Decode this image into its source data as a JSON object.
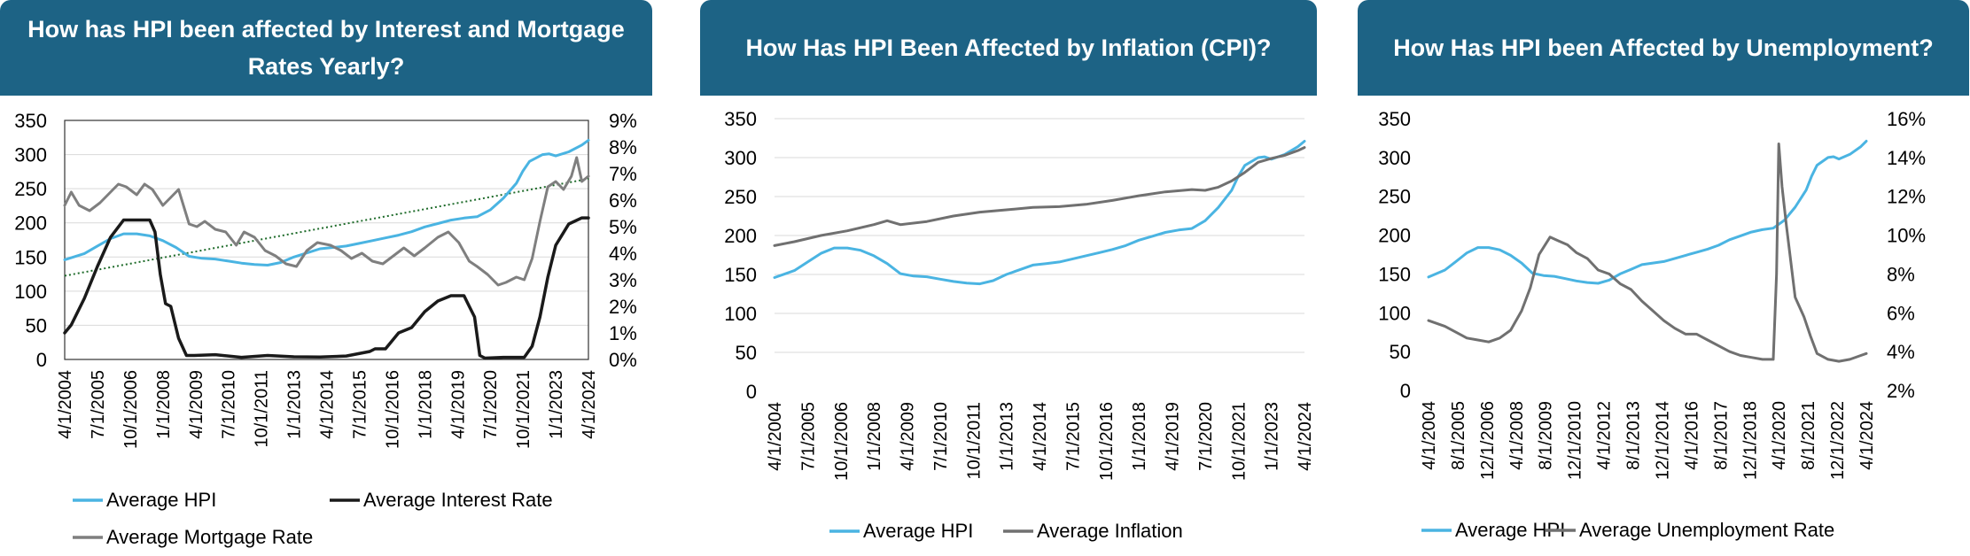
{
  "colors": {
    "banner": "#1d6385",
    "hpi": "#4ab4e2",
    "interest": "#1a1a1a",
    "mortgage": "#7f7f7f",
    "inflation": "#707070",
    "unemployment": "#707070",
    "trend": "#1e6b2a"
  },
  "chart_data": [
    {
      "type": "line",
      "title": "How has HPI been affected by Interest and Mortgage Rates Yearly?",
      "ylim": [
        0,
        350
      ],
      "y2lim": [
        0,
        9
      ],
      "yticks": [
        "0",
        "50",
        "100",
        "150",
        "200",
        "250",
        "300",
        "350"
      ],
      "y2ticks": [
        "0%",
        "1%",
        "2%",
        "3%",
        "4%",
        "5%",
        "6%",
        "7%",
        "8%",
        "9%"
      ],
      "xticks": [
        "4/1/2004",
        "7/1/2005",
        "10/1/2006",
        "1/1/2008",
        "4/1/2009",
        "7/1/2010",
        "10/1/2011",
        "1/1/2013",
        "4/1/2014",
        "7/1/2015",
        "10/1/2016",
        "1/1/2018",
        "4/1/2019",
        "7/1/2020",
        "10/1/2021",
        "1/1/2023",
        "4/1/2024"
      ],
      "xlim": [
        2004.25,
        2024.25
      ],
      "grid": true,
      "legend_position": "bottom",
      "trendline": {
        "series": "Average Mortgage Rate",
        "axis": "secondary",
        "x": [
          2004.25,
          2024.25
        ],
        "y": [
          3.15,
          6.8
        ]
      },
      "series": [
        {
          "name": "Average HPI",
          "axis": "primary",
          "x": [
            2004.25,
            2005,
            2005.5,
            2006,
            2006.5,
            2007,
            2007.5,
            2008,
            2008.5,
            2009,
            2009.5,
            2010,
            2010.5,
            2011,
            2011.5,
            2012,
            2012.5,
            2013,
            2013.5,
            2014,
            2014.5,
            2015,
            2015.5,
            2016,
            2016.5,
            2017,
            2017.5,
            2018,
            2018.5,
            2019,
            2019.5,
            2020,
            2020.25,
            2020.5,
            2021,
            2021.5,
            2021.75,
            2022,
            2022.5,
            2022.75,
            2023,
            2023.5,
            2024,
            2024.25
          ],
          "y": [
            146,
            155,
            166,
            177,
            184,
            184,
            181,
            174,
            164,
            151,
            148,
            147,
            144,
            141,
            139,
            138,
            142,
            150,
            156,
            162,
            164,
            166,
            170,
            174,
            178,
            182,
            187,
            194,
            199,
            204,
            207,
            209,
            214,
            219,
            236,
            258,
            276,
            290,
            300,
            301,
            298,
            304,
            314,
            321
          ]
        },
        {
          "name": "Average Interest Rate",
          "axis": "secondary",
          "x": [
            2004.25,
            2004.5,
            2005,
            2005.5,
            2006,
            2006.5,
            2007,
            2007.5,
            2007.7,
            2007.9,
            2008.1,
            2008.3,
            2008.6,
            2008.9,
            2009.2,
            2010,
            2011,
            2012,
            2013,
            2014,
            2015,
            2015.9,
            2016.1,
            2016.5,
            2017,
            2017.5,
            2018,
            2018.5,
            2019,
            2019.5,
            2019.7,
            2019.9,
            2020.1,
            2020.3,
            2021,
            2021.8,
            2022.1,
            2022.4,
            2022.7,
            2023,
            2023.5,
            2024,
            2024.25
          ],
          "y": [
            1.0,
            1.3,
            2.3,
            3.5,
            4.6,
            5.25,
            5.25,
            5.25,
            4.8,
            3.2,
            2.1,
            2.0,
            0.8,
            0.15,
            0.15,
            0.18,
            0.08,
            0.15,
            0.1,
            0.09,
            0.13,
            0.3,
            0.4,
            0.4,
            1.0,
            1.2,
            1.8,
            2.2,
            2.4,
            2.4,
            2.0,
            1.6,
            0.15,
            0.05,
            0.08,
            0.08,
            0.5,
            1.6,
            3.1,
            4.3,
            5.1,
            5.33,
            5.33
          ]
        },
        {
          "name": "Average Mortgage Rate",
          "axis": "secondary",
          "x": [
            2004.25,
            2004.5,
            2004.8,
            2005.2,
            2005.6,
            2006,
            2006.3,
            2006.6,
            2007,
            2007.3,
            2007.6,
            2008,
            2008.3,
            2008.6,
            2009,
            2009.3,
            2009.6,
            2010,
            2010.4,
            2010.8,
            2011.1,
            2011.5,
            2011.9,
            2012.3,
            2012.7,
            2013.1,
            2013.5,
            2013.9,
            2014.4,
            2014.8,
            2015.2,
            2015.6,
            2016,
            2016.4,
            2016.8,
            2017.2,
            2017.6,
            2018,
            2018.5,
            2018.9,
            2019.3,
            2019.7,
            2020,
            2020.4,
            2020.8,
            2021.1,
            2021.5,
            2021.8,
            2022.1,
            2022.4,
            2022.7,
            2023,
            2023.3,
            2023.6,
            2023.8,
            2024,
            2024.25
          ],
          "y": [
            5.8,
            6.3,
            5.8,
            5.6,
            5.9,
            6.3,
            6.6,
            6.5,
            6.2,
            6.6,
            6.4,
            5.8,
            6.1,
            6.4,
            5.1,
            5.0,
            5.2,
            4.9,
            4.8,
            4.3,
            4.8,
            4.6,
            4.1,
            3.9,
            3.6,
            3.5,
            4.1,
            4.4,
            4.3,
            4.1,
            3.8,
            4.0,
            3.7,
            3.6,
            3.9,
            4.2,
            3.9,
            4.2,
            4.6,
            4.8,
            4.4,
            3.7,
            3.5,
            3.2,
            2.8,
            2.9,
            3.1,
            3.0,
            3.8,
            5.2,
            6.5,
            6.7,
            6.4,
            6.9,
            7.6,
            6.7,
            6.9
          ]
        }
      ]
    },
    {
      "type": "line",
      "title": "How Has HPI Been Affected by Inflation (CPI)?",
      "ylim": [
        0,
        350
      ],
      "yticks": [
        "0",
        "50",
        "100",
        "150",
        "200",
        "250",
        "300",
        "350"
      ],
      "xticks": [
        "4/1/2004",
        "7/1/2005",
        "10/1/2006",
        "1/1/2008",
        "4/1/2009",
        "7/1/2010",
        "10/1/2011",
        "1/1/2013",
        "4/1/2014",
        "7/1/2015",
        "10/1/2016",
        "1/1/2018",
        "4/1/2019",
        "7/1/2020",
        "10/1/2021",
        "1/1/2023",
        "4/1/2024"
      ],
      "xlim": [
        2004.25,
        2024.25
      ],
      "grid": true,
      "legend_position": "bottom",
      "series": [
        {
          "name": "Average HPI",
          "x": [
            2004.25,
            2005,
            2005.5,
            2006,
            2006.5,
            2007,
            2007.5,
            2008,
            2008.5,
            2009,
            2009.5,
            2010,
            2010.5,
            2011,
            2011.5,
            2012,
            2012.5,
            2013,
            2013.5,
            2014,
            2014.5,
            2015,
            2015.5,
            2016,
            2016.5,
            2017,
            2017.5,
            2018,
            2018.5,
            2019,
            2019.5,
            2020,
            2020.25,
            2020.5,
            2021,
            2021.5,
            2021.75,
            2022,
            2022.5,
            2022.75,
            2023,
            2023.5,
            2024,
            2024.25
          ],
          "y": [
            146,
            155,
            166,
            177,
            184,
            184,
            181,
            174,
            164,
            151,
            148,
            147,
            144,
            141,
            139,
            138,
            142,
            150,
            156,
            162,
            164,
            166,
            170,
            174,
            178,
            182,
            187,
            194,
            199,
            204,
            207,
            209,
            214,
            219,
            236,
            258,
            276,
            290,
            300,
            301,
            298,
            304,
            314,
            321
          ]
        },
        {
          "name": "Average Inflation",
          "x": [
            2004.25,
            2005,
            2006,
            2007,
            2008,
            2008.5,
            2009,
            2010,
            2011,
            2012,
            2013,
            2014,
            2015,
            2016,
            2017,
            2018,
            2019,
            2020,
            2020.5,
            2021,
            2021.5,
            2022,
            2022.5,
            2023,
            2023.5,
            2024,
            2024.25
          ],
          "y": [
            187,
            192,
            200,
            206,
            214,
            219,
            214,
            218,
            225,
            230,
            233,
            236,
            237,
            240,
            245,
            251,
            256,
            259,
            258,
            262,
            270,
            281,
            294,
            299,
            303,
            309,
            313
          ]
        }
      ]
    },
    {
      "type": "line",
      "title": "How Has HPI been Affected by Unemployment?",
      "ylim": [
        0,
        350
      ],
      "y2lim": [
        2,
        16
      ],
      "yticks": [
        "0",
        "50",
        "100",
        "150",
        "200",
        "250",
        "300",
        "350"
      ],
      "y2ticks": [
        "2%",
        "4%",
        "6%",
        "8%",
        "10%",
        "12%",
        "14%",
        "16%"
      ],
      "xticks": [
        "4/1/2004",
        "8/1/2005",
        "12/1/2006",
        "4/1/2008",
        "8/1/2009",
        "12/1/2010",
        "4/1/2012",
        "8/1/2013",
        "12/1/2014",
        "4/1/2016",
        "8/1/2017",
        "12/1/2018",
        "4/1/2020",
        "8/1/2021",
        "12/1/2022",
        "4/1/2024"
      ],
      "xlim": [
        2004.25,
        2024.25
      ],
      "grid": false,
      "legend_position": "bottom",
      "series": [
        {
          "name": "Average HPI",
          "axis": "primary",
          "x": [
            2004.25,
            2005,
            2005.5,
            2006,
            2006.5,
            2007,
            2007.5,
            2008,
            2008.5,
            2009,
            2009.5,
            2010,
            2010.5,
            2011,
            2011.5,
            2012,
            2012.5,
            2013,
            2013.5,
            2014,
            2014.5,
            2015,
            2015.5,
            2016,
            2016.5,
            2017,
            2017.5,
            2018,
            2018.5,
            2019,
            2019.5,
            2020,
            2020.25,
            2020.5,
            2021,
            2021.5,
            2021.75,
            2022,
            2022.5,
            2022.75,
            2023,
            2023.5,
            2024,
            2024.25
          ],
          "y": [
            146,
            155,
            166,
            177,
            184,
            184,
            181,
            174,
            164,
            151,
            148,
            147,
            144,
            141,
            139,
            138,
            142,
            150,
            156,
            162,
            164,
            166,
            170,
            174,
            178,
            182,
            187,
            194,
            199,
            204,
            207,
            209,
            214,
            219,
            236,
            258,
            276,
            290,
            300,
            301,
            298,
            304,
            314,
            321
          ]
        },
        {
          "name": "Average Unemployment Rate",
          "axis": "secondary",
          "x": [
            2004.25,
            2005,
            2005.5,
            2006,
            2006.5,
            2007,
            2007.5,
            2008,
            2008.5,
            2008.9,
            2009.3,
            2009.8,
            2010.2,
            2010.6,
            2011,
            2011.5,
            2012,
            2012.5,
            2013,
            2013.5,
            2014,
            2014.5,
            2015,
            2015.5,
            2016,
            2016.5,
            2017,
            2017.5,
            2018,
            2018.5,
            2019,
            2019.5,
            2020,
            2020.15,
            2020.25,
            2020.4,
            2020.6,
            2021,
            2021.4,
            2021.7,
            2022,
            2022.5,
            2023,
            2023.5,
            2024,
            2024.25
          ],
          "y": [
            5.6,
            5.3,
            5.0,
            4.7,
            4.6,
            4.5,
            4.7,
            5.1,
            6.1,
            7.3,
            9.0,
            9.9,
            9.7,
            9.5,
            9.1,
            8.8,
            8.2,
            8.0,
            7.5,
            7.2,
            6.6,
            6.1,
            5.6,
            5.2,
            4.9,
            4.9,
            4.6,
            4.3,
            4.0,
            3.8,
            3.7,
            3.6,
            3.6,
            8.0,
            14.7,
            12.5,
            10.5,
            6.8,
            5.8,
            4.8,
            3.9,
            3.6,
            3.5,
            3.6,
            3.8,
            3.9
          ]
        }
      ]
    }
  ]
}
